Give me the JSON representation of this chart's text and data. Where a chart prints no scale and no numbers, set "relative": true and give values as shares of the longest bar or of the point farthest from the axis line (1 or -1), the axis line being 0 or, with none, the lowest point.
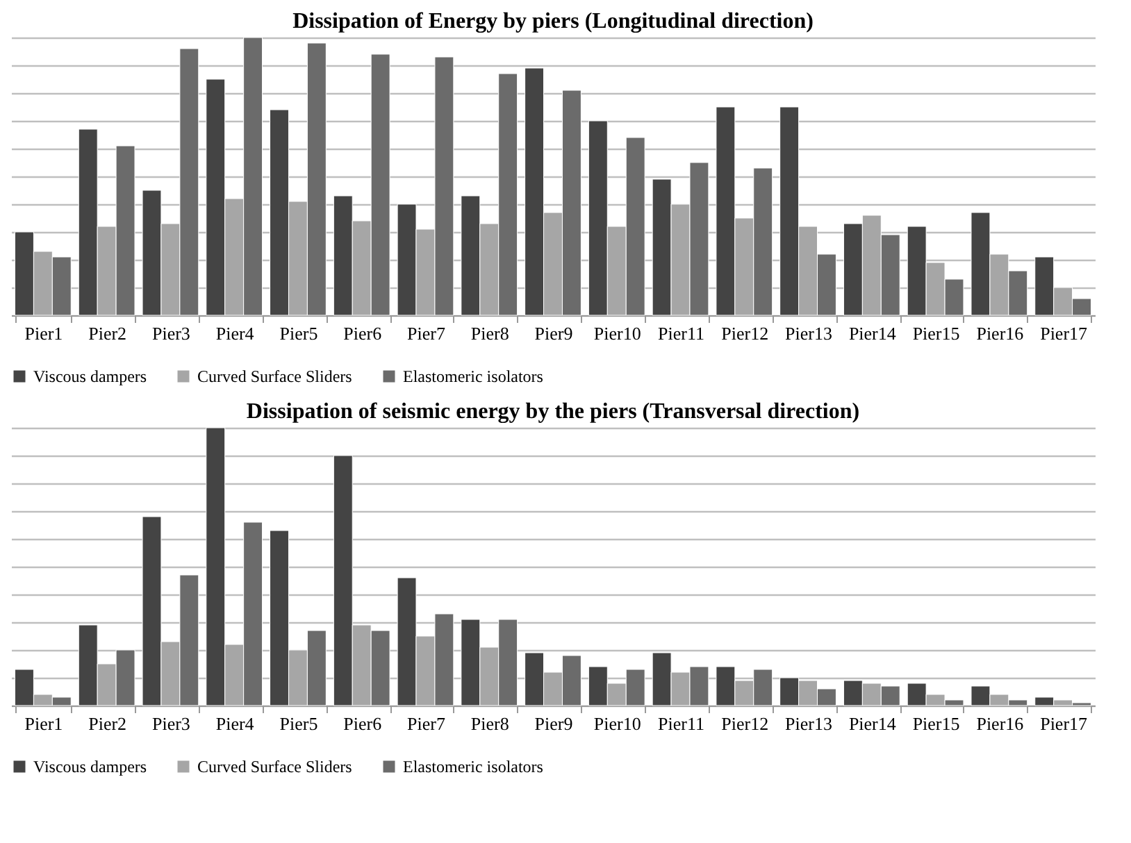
{
  "chart_data": [
    {
      "type": "bar",
      "title": "Dissipation of Energy by piers (Longitudinal direction)",
      "relative": true,
      "grid": "y",
      "legend": "bottom",
      "categories": [
        "Pier1",
        "Pier2",
        "Pier3",
        "Pier4",
        "Pier5",
        "Pier6",
        "Pier7",
        "Pier8",
        "Pier9",
        "Pier10",
        "Pier11",
        "Pier12",
        "Pier13",
        "Pier14",
        "Pier15",
        "Pier16",
        "Pier17"
      ],
      "series": [
        {
          "name": "Viscous dampers",
          "color": "#444444",
          "values": [
            0.3,
            0.67,
            0.45,
            0.85,
            0.74,
            0.43,
            0.4,
            0.43,
            0.89,
            0.7,
            0.49,
            0.75,
            0.75,
            0.33,
            0.32,
            0.37,
            0.21
          ]
        },
        {
          "name": "Curved Surface Sliders",
          "color": "#a6a6a6",
          "values": [
            0.23,
            0.32,
            0.33,
            0.42,
            0.41,
            0.34,
            0.31,
            0.33,
            0.37,
            0.32,
            0.4,
            0.35,
            0.32,
            0.36,
            0.19,
            0.22,
            0.1
          ]
        },
        {
          "name": "Elastomeric isolators",
          "color": "#6b6b6b",
          "values": [
            0.21,
            0.61,
            0.96,
            1,
            0.98,
            0.94,
            0.93,
            0.87,
            0.81,
            0.64,
            0.55,
            0.53,
            0.22,
            0.29,
            0.13,
            0.16,
            0.06
          ]
        }
      ]
    },
    {
      "type": "bar",
      "title": "Dissipation of seismic energy by the piers (Transversal direction)",
      "relative": true,
      "grid": "y",
      "legend": "bottom",
      "categories": [
        "Pier1",
        "Pier2",
        "Pier3",
        "Pier4",
        "Pier5",
        "Pier6",
        "Pier7",
        "Pier8",
        "Pier9",
        "Pier10",
        "Pier11",
        "Pier12",
        "Pier13",
        "Pier14",
        "Pier15",
        "Pier16",
        "Pier17"
      ],
      "series": [
        {
          "name": "Viscous dampers",
          "color": "#444444",
          "values": [
            0.13,
            0.29,
            0.68,
            1,
            0.63,
            0.9,
            0.46,
            0.31,
            0.19,
            0.14,
            0.19,
            0.14,
            0.1,
            0.09,
            0.08,
            0.07,
            0.03
          ]
        },
        {
          "name": "Curved Surface Sliders",
          "color": "#a6a6a6",
          "values": [
            0.04,
            0.15,
            0.23,
            0.22,
            0.2,
            0.29,
            0.25,
            0.21,
            0.12,
            0.08,
            0.12,
            0.09,
            0.09,
            0.08,
            0.04,
            0.04,
            0.02
          ]
        },
        {
          "name": "Elastomeric isolators",
          "color": "#6b6b6b",
          "values": [
            0.03,
            0.2,
            0.47,
            0.66,
            0.27,
            0.27,
            0.33,
            0.31,
            0.18,
            0.13,
            0.14,
            0.13,
            0.06,
            0.07,
            0.02,
            0.02,
            0.01
          ]
        }
      ]
    }
  ]
}
